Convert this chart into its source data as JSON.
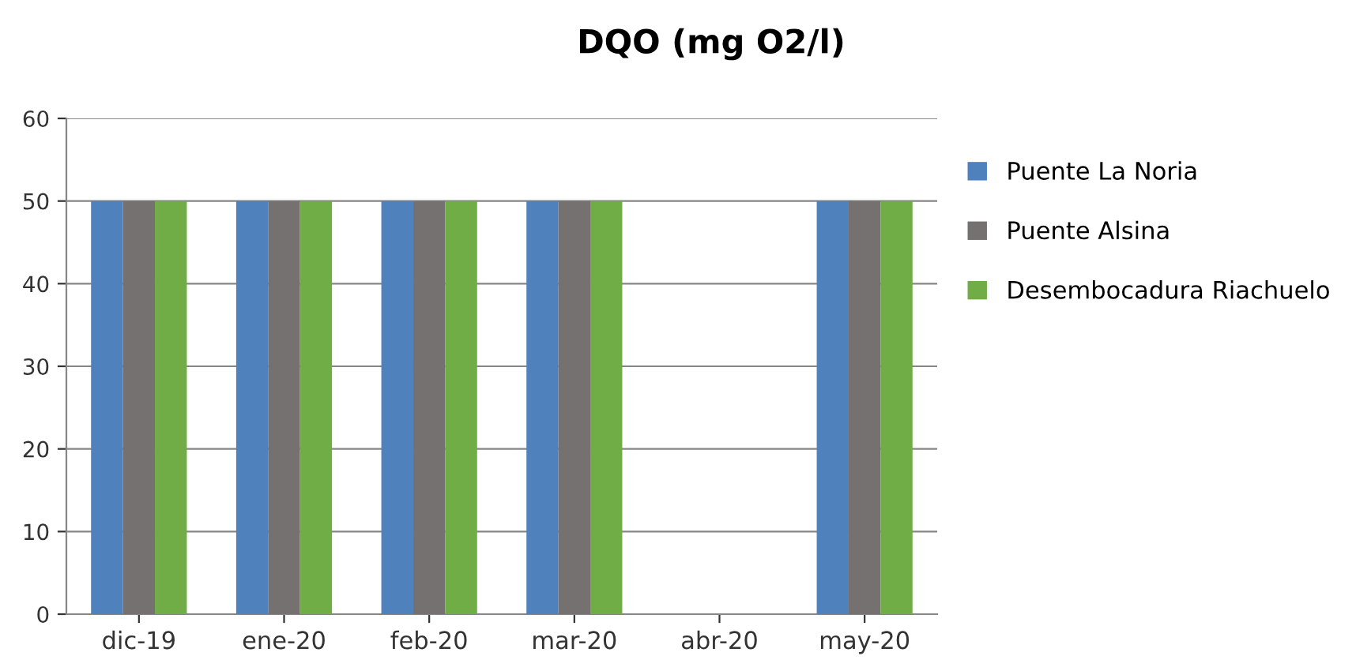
{
  "chart_data": {
    "type": "bar",
    "title": "DQO (mg O2/l)",
    "categories": [
      "dic-19",
      "ene-20",
      "feb-20",
      "mar-20",
      "abr-20",
      "may-20"
    ],
    "series": [
      {
        "name": "Puente La Noria",
        "color": "#4f81bd",
        "values": [
          50,
          50,
          50,
          50,
          null,
          50
        ]
      },
      {
        "name": "Puente Alsina",
        "color": "#767171",
        "values": [
          50,
          50,
          50,
          50,
          null,
          50
        ]
      },
      {
        "name": "Desembocadura Riachuelo",
        "color": "#70ad47",
        "values": [
          50,
          50,
          50,
          50,
          null,
          50
        ]
      }
    ],
    "ylim": [
      0,
      60
    ],
    "yticks": [
      0,
      10,
      20,
      30,
      40,
      50,
      60
    ],
    "grid": "y",
    "legend": "right"
  }
}
